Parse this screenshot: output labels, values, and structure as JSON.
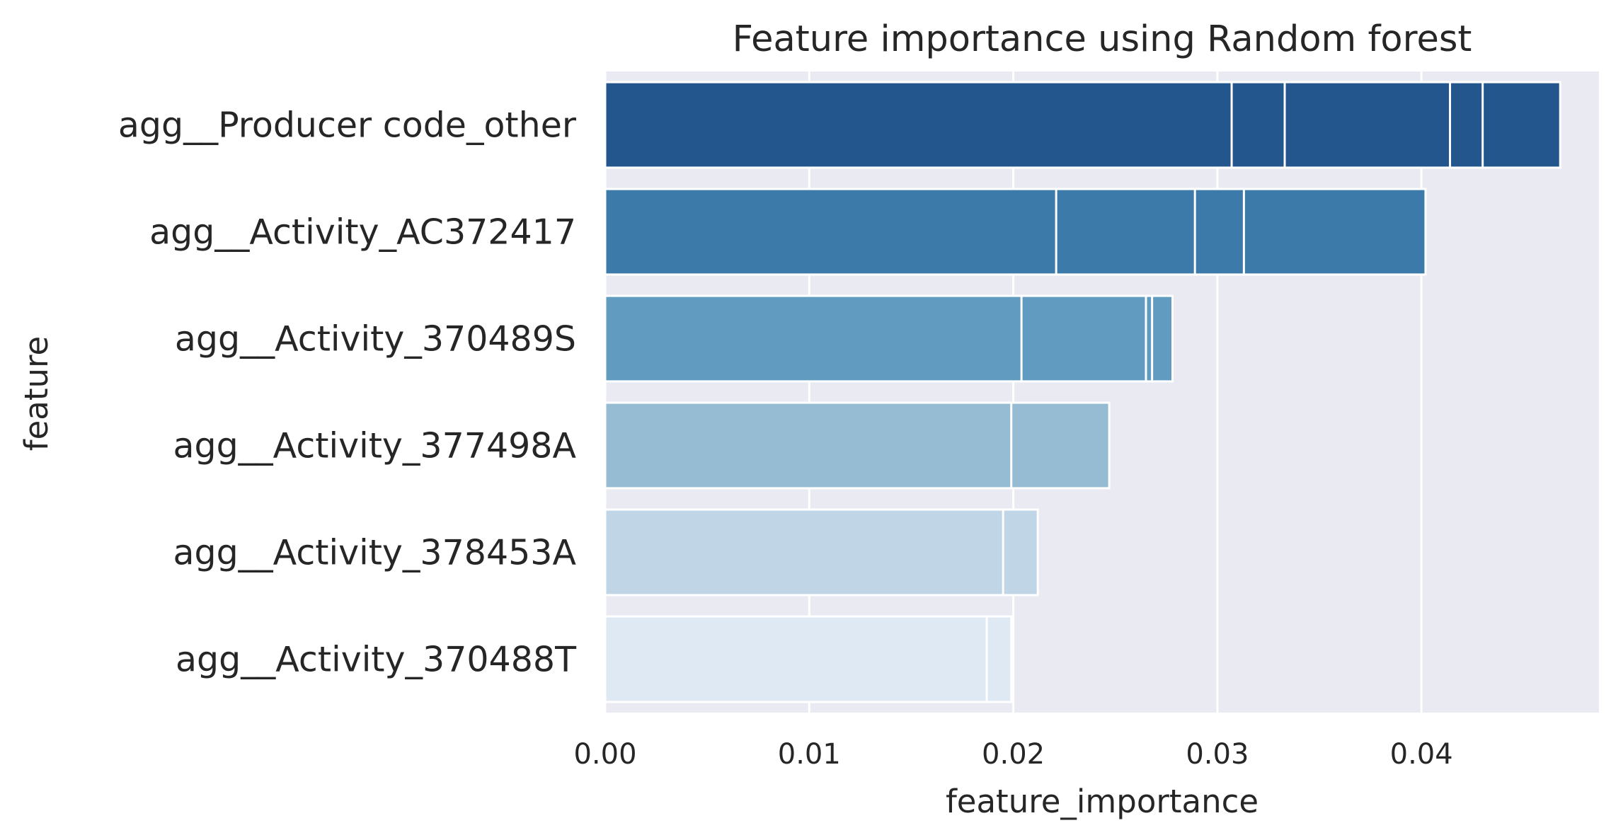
{
  "chart_data": {
    "type": "bar",
    "orientation": "horizontal",
    "title": "Feature importance using Random forest",
    "xlabel": "feature_importance",
    "ylabel": "feature",
    "xlim": [
      0,
      0.0487
    ],
    "xticks": [
      0.0,
      0.01,
      0.02,
      0.03,
      0.04
    ],
    "xtick_labels": [
      "0.00",
      "0.01",
      "0.02",
      "0.03",
      "0.04"
    ],
    "grid": true,
    "categories": [
      "agg__Producer code_other",
      "agg__Activity_AC372417",
      "agg__Activity_370489S",
      "agg__Activity_377498A",
      "agg__Activity_378453A",
      "agg__Activity_370488T"
    ],
    "colors": [
      "#22568c",
      "#3c7aa9",
      "#629bc0",
      "#95bcd3",
      "#c0d6e7",
      "#dee9f3"
    ],
    "overlaid_values": [
      [
        0.0307,
        0.0333,
        0.0414,
        0.043,
        0.0468
      ],
      [
        0.0221,
        0.0289,
        0.0313,
        0.0402
      ],
      [
        0.0204,
        0.0265,
        0.0268,
        0.0278
      ],
      [
        0.0199,
        0.0247
      ],
      [
        0.0195,
        0.0212
      ],
      [
        0.0187,
        0.0199
      ]
    ]
  }
}
